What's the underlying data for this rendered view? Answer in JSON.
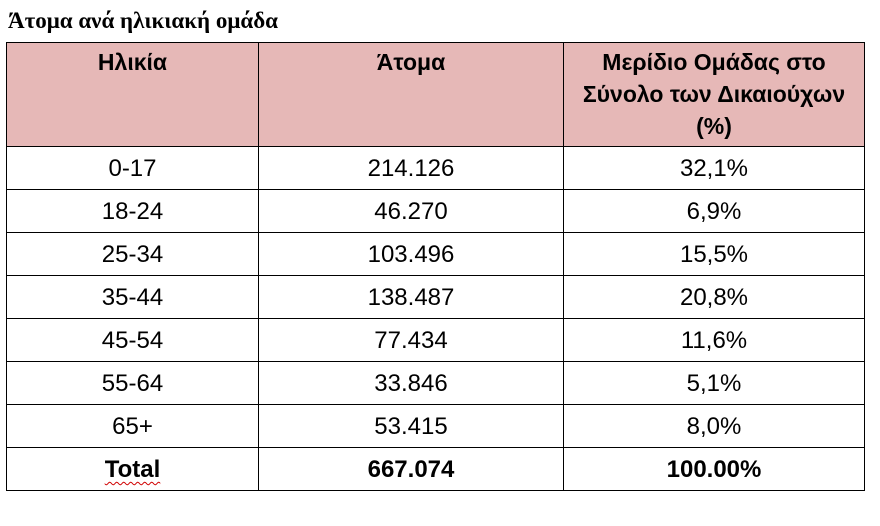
{
  "title": "Άτομα ανά ηλικιακή ομάδα",
  "table": {
    "header": [
      "Ηλικία",
      "Άτομα",
      "Μερίδιο Ομάδας στο Σύνολο των Δικαιούχων (%)"
    ],
    "rows": [
      [
        "0-17",
        "214.126",
        "32,1%"
      ],
      [
        "18-24",
        "46.270",
        "6,9%"
      ],
      [
        "25-34",
        "103.496",
        "15,5%"
      ],
      [
        "35-44",
        "138.487",
        "20,8%"
      ],
      [
        "45-54",
        "77.434",
        "11,6%"
      ],
      [
        "55-64",
        "33.846",
        "5,1%"
      ],
      [
        "65+",
        "53.415",
        "8,0%"
      ]
    ],
    "total": [
      "Total",
      "667.074",
      "100.00%"
    ]
  }
}
